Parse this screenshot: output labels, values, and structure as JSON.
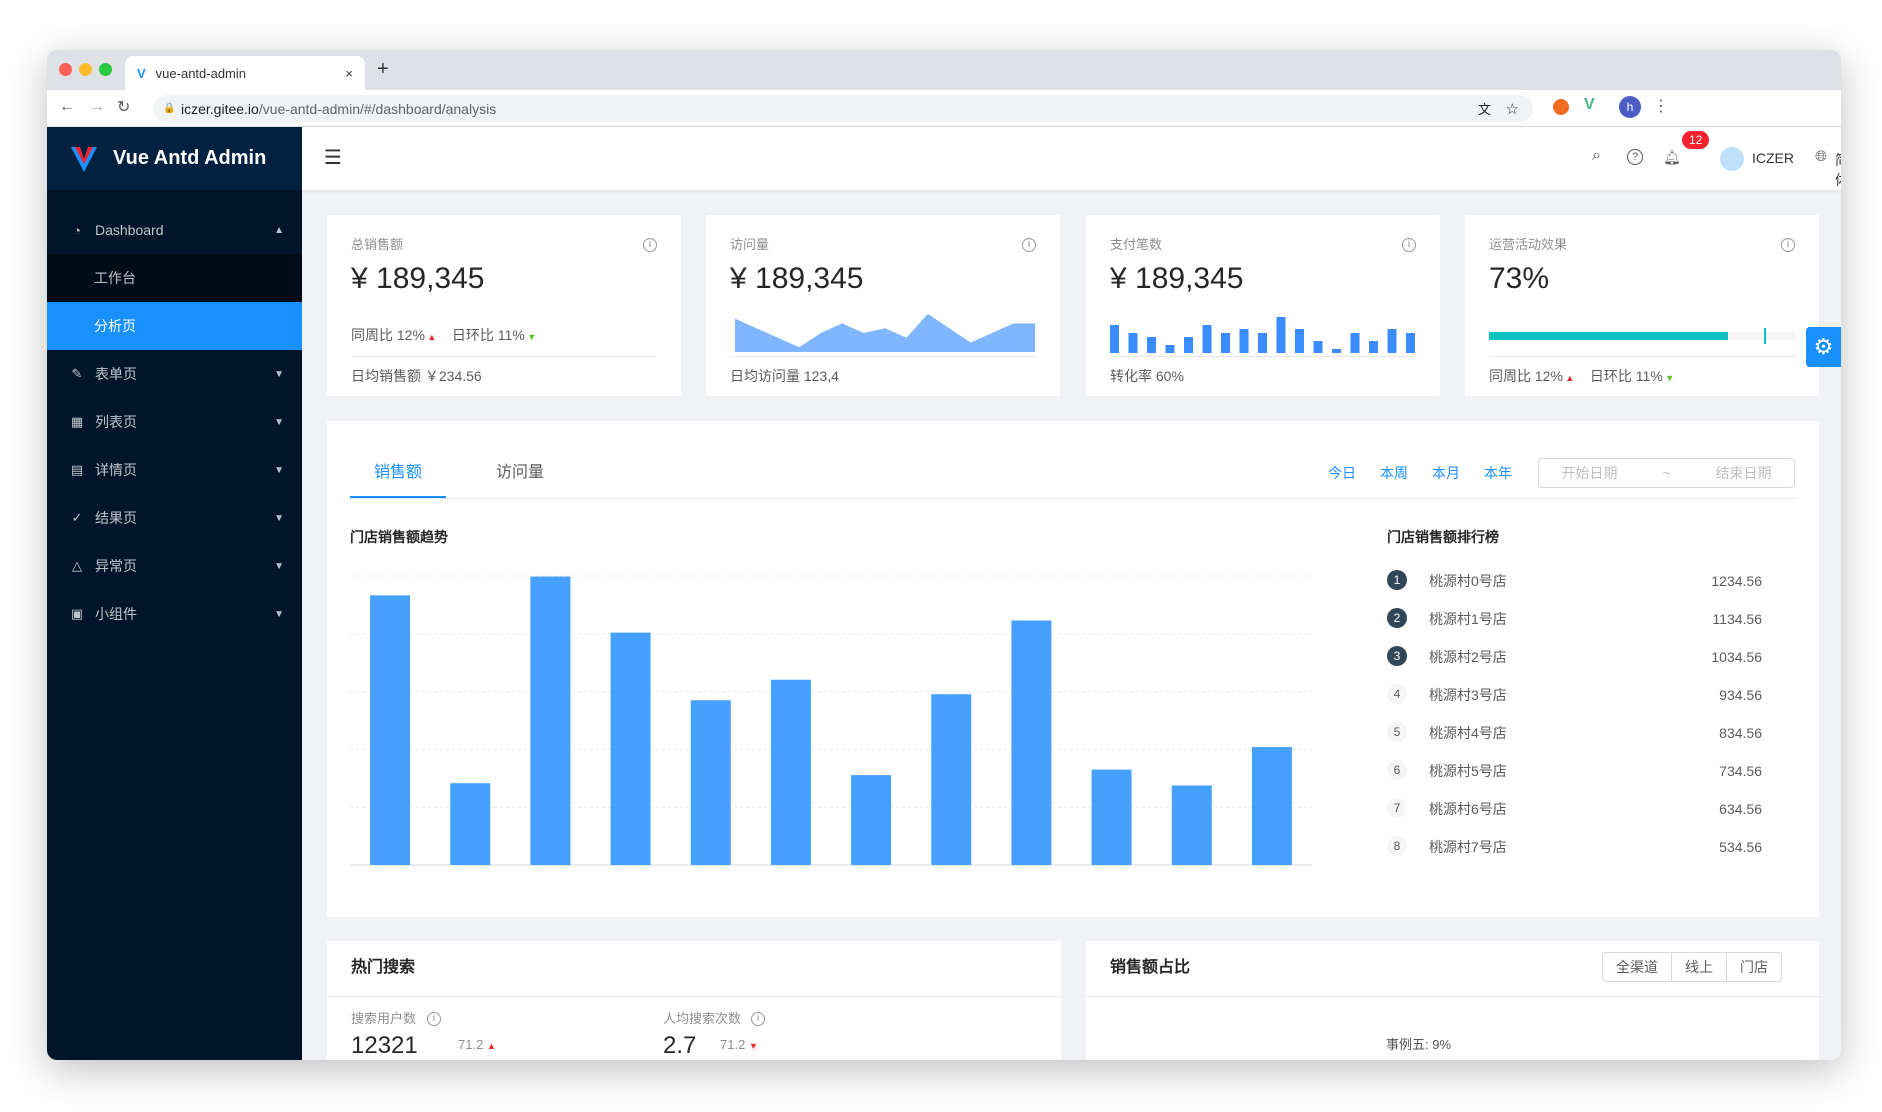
{
  "browser": {
    "tab_title": "vue-antd-admin",
    "url_host": "iczer.gitee.io",
    "url_path": "/vue-antd-admin/#/dashboard/analysis",
    "new_tab": "+",
    "close": "×"
  },
  "sidebar": {
    "brand": "Vue Antd Admin",
    "items": [
      {
        "label": "Dashboard",
        "icon": "dashboard-icon",
        "expanded": true
      },
      {
        "label": "工作台",
        "sub": true
      },
      {
        "label": "分析页",
        "sub": true,
        "selected": true
      },
      {
        "label": "表单页",
        "icon": "form-icon"
      },
      {
        "label": "列表页",
        "icon": "table-icon"
      },
      {
        "label": "详情页",
        "icon": "profile-icon"
      },
      {
        "label": "结果页",
        "icon": "check-circle-icon"
      },
      {
        "label": "异常页",
        "icon": "warning-icon"
      },
      {
        "label": "小组件",
        "icon": "appstore-icon"
      }
    ]
  },
  "header": {
    "notice_count": "12",
    "user": "ICZER",
    "lang": "简体"
  },
  "cards": [
    {
      "title": "总销售额",
      "value": "¥ 189,345",
      "week": "同周比 12%",
      "day": "日环比 11%",
      "footer": "日均销售额 ￥234.56"
    },
    {
      "title": "访问量",
      "value": "¥ 189,345",
      "footer": "日均访问量 123,4",
      "area": [
        7,
        5,
        3,
        1,
        4,
        6,
        4,
        5,
        3,
        8,
        5,
        2,
        4,
        6,
        6
      ]
    },
    {
      "title": "支付笔数",
      "value": "¥ 189,345",
      "footer": "转化率 60%",
      "bars": [
        7,
        5,
        4,
        2,
        4,
        7,
        5,
        6,
        5,
        9,
        6,
        3,
        1,
        5,
        3,
        6,
        5
      ]
    },
    {
      "title": "运营活动效果",
      "value": "73%",
      "progress": 78,
      "target": 90,
      "week": "同周比 12%",
      "day": "日环比 11%"
    }
  ],
  "sales": {
    "tabs": [
      "销售额",
      "访问量"
    ],
    "active_tab": 0,
    "ranges": [
      "今日",
      "本周",
      "本月",
      "本年"
    ],
    "start_placeholder": "开始日期",
    "sep": "~",
    "end_placeholder": "结束日期",
    "rank_title": "门店销售额排行榜",
    "ranking": [
      {
        "rank": "1",
        "name": "桃源村0号店",
        "value": "1234.56"
      },
      {
        "rank": "2",
        "name": "桃源村1号店",
        "value": "1134.56"
      },
      {
        "rank": "3",
        "name": "桃源村2号店",
        "value": "1034.56"
      },
      {
        "rank": "4",
        "name": "桃源村3号店",
        "value": "934.56"
      },
      {
        "rank": "5",
        "name": "桃源村4号店",
        "value": "834.56"
      },
      {
        "rank": "6",
        "name": "桃源村5号店",
        "value": "734.56"
      },
      {
        "rank": "7",
        "name": "桃源村6号店",
        "value": "634.56"
      },
      {
        "rank": "8",
        "name": "桃源村7号店",
        "value": "534.56"
      }
    ]
  },
  "chart_data": {
    "type": "bar",
    "title": "门店销售额趋势",
    "values": [
      933,
      283,
      998,
      804,
      570,
      641,
      311,
      591,
      846,
      330,
      275,
      408
    ],
    "ylim": [
      0,
      1000
    ],
    "grid": true,
    "color": "#45a0ff"
  },
  "hot": {
    "title": "热门搜索",
    "m1_label": "搜索用户数",
    "m1_value": "12321",
    "m1_delta": "71.2",
    "m2_label": "人均搜索次数",
    "m2_value": "2.7",
    "m2_delta": "71.2"
  },
  "share": {
    "title": "销售额占比",
    "options": [
      "全渠道",
      "线上",
      "门店"
    ],
    "legend_partial": "事例五: 9%"
  },
  "colors": {
    "primary": "#1890ff",
    "sider": "#001529",
    "progress": "#13c2c2",
    "up": "#f5222d",
    "down": "#52c41a"
  }
}
